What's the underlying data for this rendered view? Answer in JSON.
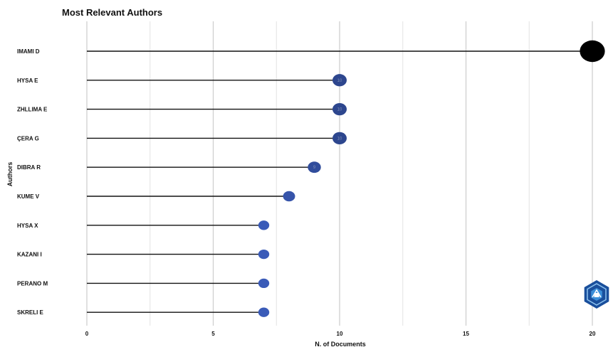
{
  "chart_data": {
    "type": "lollipop",
    "title": "Most Relevant Authors",
    "xlabel": "N. of Documents",
    "ylabel": "Authors",
    "categories": [
      "IMAMI D",
      "HYSA E",
      "ZHLLIMA E",
      "ÇERA G",
      "DIBRA R",
      "KUME V",
      "HYSA X",
      "KAZANI I",
      "PERANO M",
      "SKRELI E"
    ],
    "values": [
      20,
      10,
      10,
      10,
      9,
      8,
      7,
      7,
      7,
      7
    ],
    "xlim": [
      0,
      20
    ],
    "xticks": [
      0,
      5,
      10,
      15,
      20
    ],
    "grid": true,
    "color_scale": {
      "low": "#3a5bb8",
      "high": "#000000"
    },
    "value_labels": [
      "",
      "10",
      "10",
      "10",
      "9",
      "",
      "",
      "",
      "",
      ""
    ]
  },
  "logo": {
    "name": "bibliometrix-logo-icon",
    "colors": [
      "#1a4f9c",
      "#3b8fd9"
    ]
  }
}
